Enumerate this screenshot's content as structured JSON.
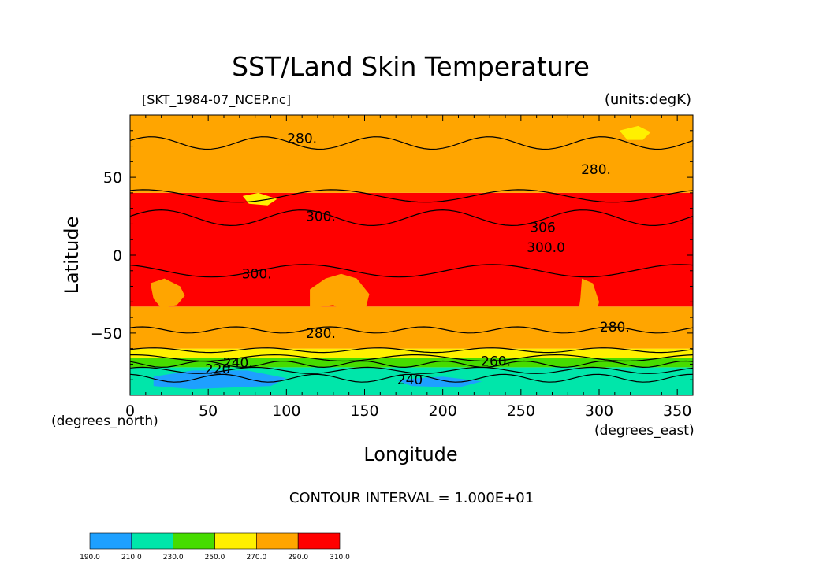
{
  "title": "SST/Land Skin Temperature",
  "source_file": "[SKT_1984-07_NCEP.nc]",
  "units_label": "(units:degK)",
  "xlabel": "Longitude",
  "ylabel": "Latitude",
  "x_units": "(degrees_east)",
  "y_units": "(degrees_north)",
  "contour_interval_text": "CONTOUR INTERVAL = 1.000E+01",
  "chart_data": {
    "type": "heatmap",
    "title": "SST/Land Skin Temperature",
    "xlabel": "Longitude",
    "ylabel": "Latitude",
    "xlim": [
      0,
      360
    ],
    "ylim": [
      -90,
      90
    ],
    "x_ticks": [
      0,
      50,
      100,
      150,
      200,
      250,
      300,
      350
    ],
    "y_ticks": [
      -50,
      0,
      50
    ],
    "grid": false,
    "units": "degK",
    "colorbar": {
      "levels": [
        "190.0",
        "210.0",
        "230.0",
        "250.0",
        "270.0",
        "290.0",
        "310.0"
      ],
      "colors": [
        "#1EA0FF",
        "#00E6AA",
        "#46DC00",
        "#FFF000",
        "#FFA500",
        "#FF0000"
      ]
    },
    "bands": [
      {
        "range": [
          -90,
          -80
        ],
        "color_index": 1
      },
      {
        "range": [
          -80,
          -72
        ],
        "color_index": 1
      },
      {
        "range": [
          -72,
          -66
        ],
        "color_index": 2
      },
      {
        "range": [
          -66,
          -60
        ],
        "color_index": 3
      },
      {
        "range": [
          -60,
          -33
        ],
        "color_index": 4
      },
      {
        "range": [
          -33,
          40
        ],
        "color_index": 5
      },
      {
        "range": [
          40,
          90
        ],
        "color_index": 4
      }
    ],
    "contour_labels": [
      {
        "text": "280.",
        "lon": 110,
        "lat": 75
      },
      {
        "text": "280.",
        "lon": 298,
        "lat": 55
      },
      {
        "text": "300.",
        "lon": 122,
        "lat": 25
      },
      {
        "text": "306",
        "lon": 264,
        "lat": 18
      },
      {
        "text": "300.0",
        "lon": 266,
        "lat": 5
      },
      {
        "text": "300.",
        "lon": 81,
        "lat": -12
      },
      {
        "text": "280.",
        "lon": 122,
        "lat": -50
      },
      {
        "text": "280.",
        "lon": 310,
        "lat": -46
      },
      {
        "text": "220",
        "lon": 56,
        "lat": -73
      },
      {
        "text": "240.",
        "lon": 69,
        "lat": -69
      },
      {
        "text": "260.",
        "lon": 234,
        "lat": -68
      },
      {
        "text": "240",
        "lon": 179,
        "lat": -80
      }
    ]
  }
}
